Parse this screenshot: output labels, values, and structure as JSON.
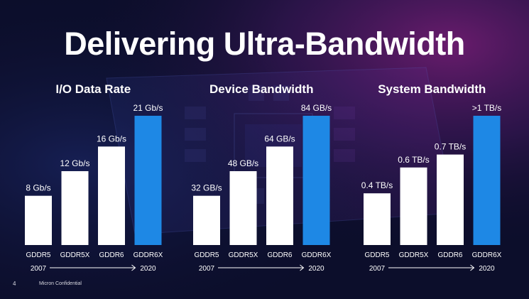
{
  "slide": {
    "title": "Delivering Ultra-Bandwidth",
    "page_number": "4",
    "confidential": "Micron Confidential"
  },
  "colors": {
    "bar_default": "#ffffff",
    "bar_highlight": "#1e88e5",
    "text": "#ffffff",
    "background": "#0c0e2b"
  },
  "chart_data": [
    {
      "type": "bar",
      "title": "I/O Data Rate",
      "categories": [
        "GDDR5",
        "GDDR5X",
        "GDDR6",
        "GDDR6X"
      ],
      "values": [
        8,
        12,
        16,
        21
      ],
      "unit": "Gb/s",
      "labels": [
        "8 Gb/s",
        "12 Gb/s",
        "16 Gb/s",
        "21 Gb/s"
      ],
      "highlight_index": 3,
      "ylim": [
        0,
        21
      ],
      "timeline": {
        "start": "2007",
        "end": "2020"
      }
    },
    {
      "type": "bar",
      "title": "Device Bandwidth",
      "categories": [
        "GDDR5",
        "GDDR5X",
        "GDDR6",
        "GDDR6X"
      ],
      "values": [
        32,
        48,
        64,
        84
      ],
      "unit": "GB/s",
      "labels": [
        "32 GB/s",
        "48 GB/s",
        "64 GB/s",
        "84 GB/s"
      ],
      "highlight_index": 3,
      "ylim": [
        0,
        84
      ],
      "timeline": {
        "start": "2007",
        "end": "2020"
      }
    },
    {
      "type": "bar",
      "title": "System Bandwidth",
      "categories": [
        "GDDR5",
        "GDDR5X",
        "GDDR6",
        "GDDR6X"
      ],
      "values": [
        0.4,
        0.6,
        0.7,
        1.0
      ],
      "unit": "TB/s",
      "labels": [
        "0.4 TB/s",
        "0.6 TB/s",
        "0.7 TB/s",
        ">1 TB/s"
      ],
      "highlight_index": 3,
      "ylim": [
        0,
        1.0
      ],
      "timeline": {
        "start": "2007",
        "end": "2020"
      }
    }
  ]
}
